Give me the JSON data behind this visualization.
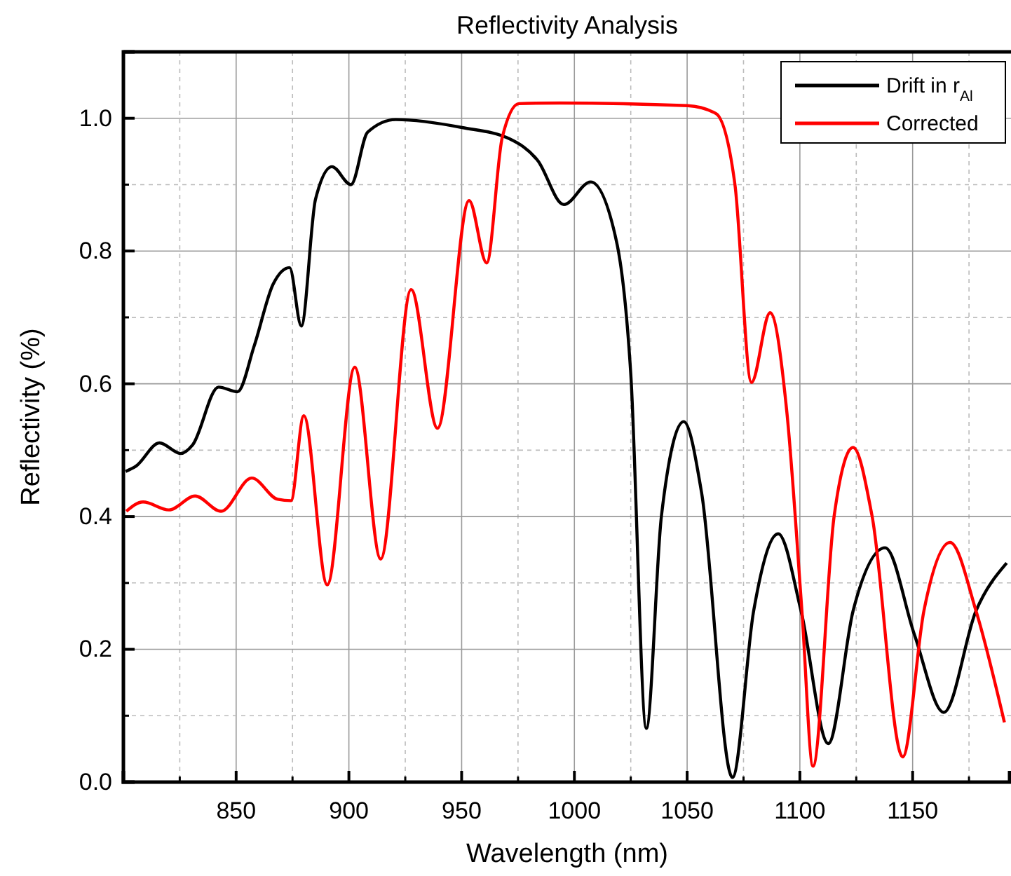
{
  "chart_data": {
    "type": "line",
    "title": "Reflectivity Analysis",
    "xlabel": "Wavelength (nm)",
    "ylabel": "Reflectivity (%)",
    "xlim": [
      800,
      1193
    ],
    "xticks": [
      850,
      900,
      950,
      1000,
      1050,
      1100,
      1150
    ],
    "ylim": [
      0,
      1.1
    ],
    "yticks": [
      {
        "value": 0,
        "label": "0.0"
      },
      {
        "value": 0.2,
        "label": "0.2"
      },
      {
        "value": 0.4,
        "label": "0.4"
      },
      {
        "value": 0.6,
        "label": "0.6"
      },
      {
        "value": 0.8,
        "label": "0.8"
      },
      {
        "value": 1,
        "label": "1.0"
      }
    ],
    "grid": true,
    "legend": "top right",
    "line_style": "solid",
    "marker": "none",
    "series": [
      {
        "name": "Drift in r$_{Al}$",
        "color": "#000000",
        "x": [
          801,
          805.6,
          816,
          825.4,
          830.7,
          842.2,
          850.6,
          858,
          866.4,
          873.7,
          878.9,
          885.2,
          892.5,
          900.9,
          908.3,
          920.8,
          950.2,
          971.2,
          983.8,
          995.3,
          1007.2,
          1018.7,
          1025,
          1031.9,
          1038.6,
          1048.5,
          1056.4,
          1070.1,
          1079.5,
          1090.4,
          1100.5,
          1112.6,
          1123.6,
          1137.8,
          1150.8,
          1163.8,
          1178.1,
          1191.7
        ],
        "values": [
          0.468,
          0.476,
          0.511,
          0.495,
          0.508,
          0.595,
          0.588,
          0.657,
          0.75,
          0.775,
          0.687,
          0.878,
          0.927,
          0.9,
          0.979,
          0.998,
          0.986,
          0.969,
          0.936,
          0.87,
          0.904,
          0.814,
          0.615,
          0.081,
          0.401,
          0.543,
          0.436,
          0.007,
          0.258,
          0.374,
          0.258,
          0.058,
          0.258,
          0.353,
          0.222,
          0.105,
          0.258,
          0.33
        ]
      },
      {
        "name": "Corrected",
        "color": "#ff0000",
        "x": [
          801.3,
          808.7,
          820.2,
          831.8,
          843.3,
          856.9,
          868.4,
          874.3,
          880,
          890.4,
          902.6,
          914.1,
          927.6,
          939.3,
          953.3,
          961.1,
          968,
          975.4,
          993.5,
          1050.2,
          1062.8,
          1071.2,
          1078.5,
          1086.8,
          1094.2,
          1100.9,
          1105.8,
          1115.2,
          1123.6,
          1132,
          1145.6,
          1155,
          1166.6,
          1178.1,
          1190.7
        ],
        "values": [
          0.408,
          0.422,
          0.41,
          0.431,
          0.408,
          0.458,
          0.426,
          0.424,
          0.552,
          0.297,
          0.625,
          0.336,
          0.742,
          0.533,
          0.876,
          0.782,
          0.971,
          1.022,
          1.023,
          1.019,
          1.007,
          0.9,
          0.602,
          0.707,
          0.558,
          0.258,
          0.024,
          0.401,
          0.504,
          0.401,
          0.038,
          0.258,
          0.361,
          0.258,
          0.09
        ]
      }
    ]
  }
}
